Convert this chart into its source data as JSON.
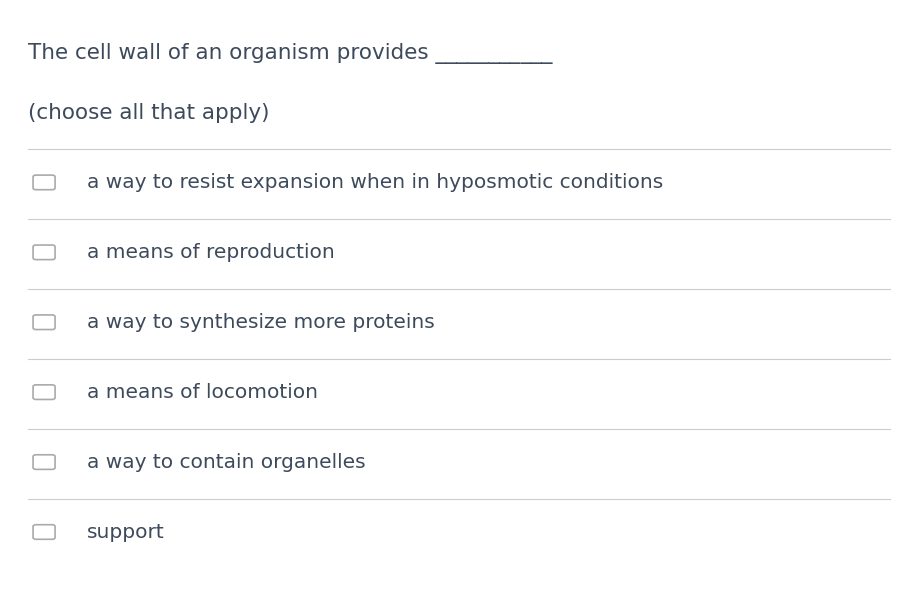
{
  "title_line1": "The cell wall of an organism provides ___________",
  "title_line2": "(choose all that apply)",
  "options": [
    "a way to resist expansion when in hyposmotic conditions",
    "a means of reproduction",
    "a way to synthesize more proteins",
    "a means of locomotion",
    "a way to contain organelles",
    "support"
  ],
  "background_color": "#ffffff",
  "text_color": "#3d4a5c",
  "line_color": "#cccccc",
  "checkbox_color": "#aaaaaa",
  "title_fontsize": 15.5,
  "option_fontsize": 14.5,
  "checkbox_size": 0.018
}
